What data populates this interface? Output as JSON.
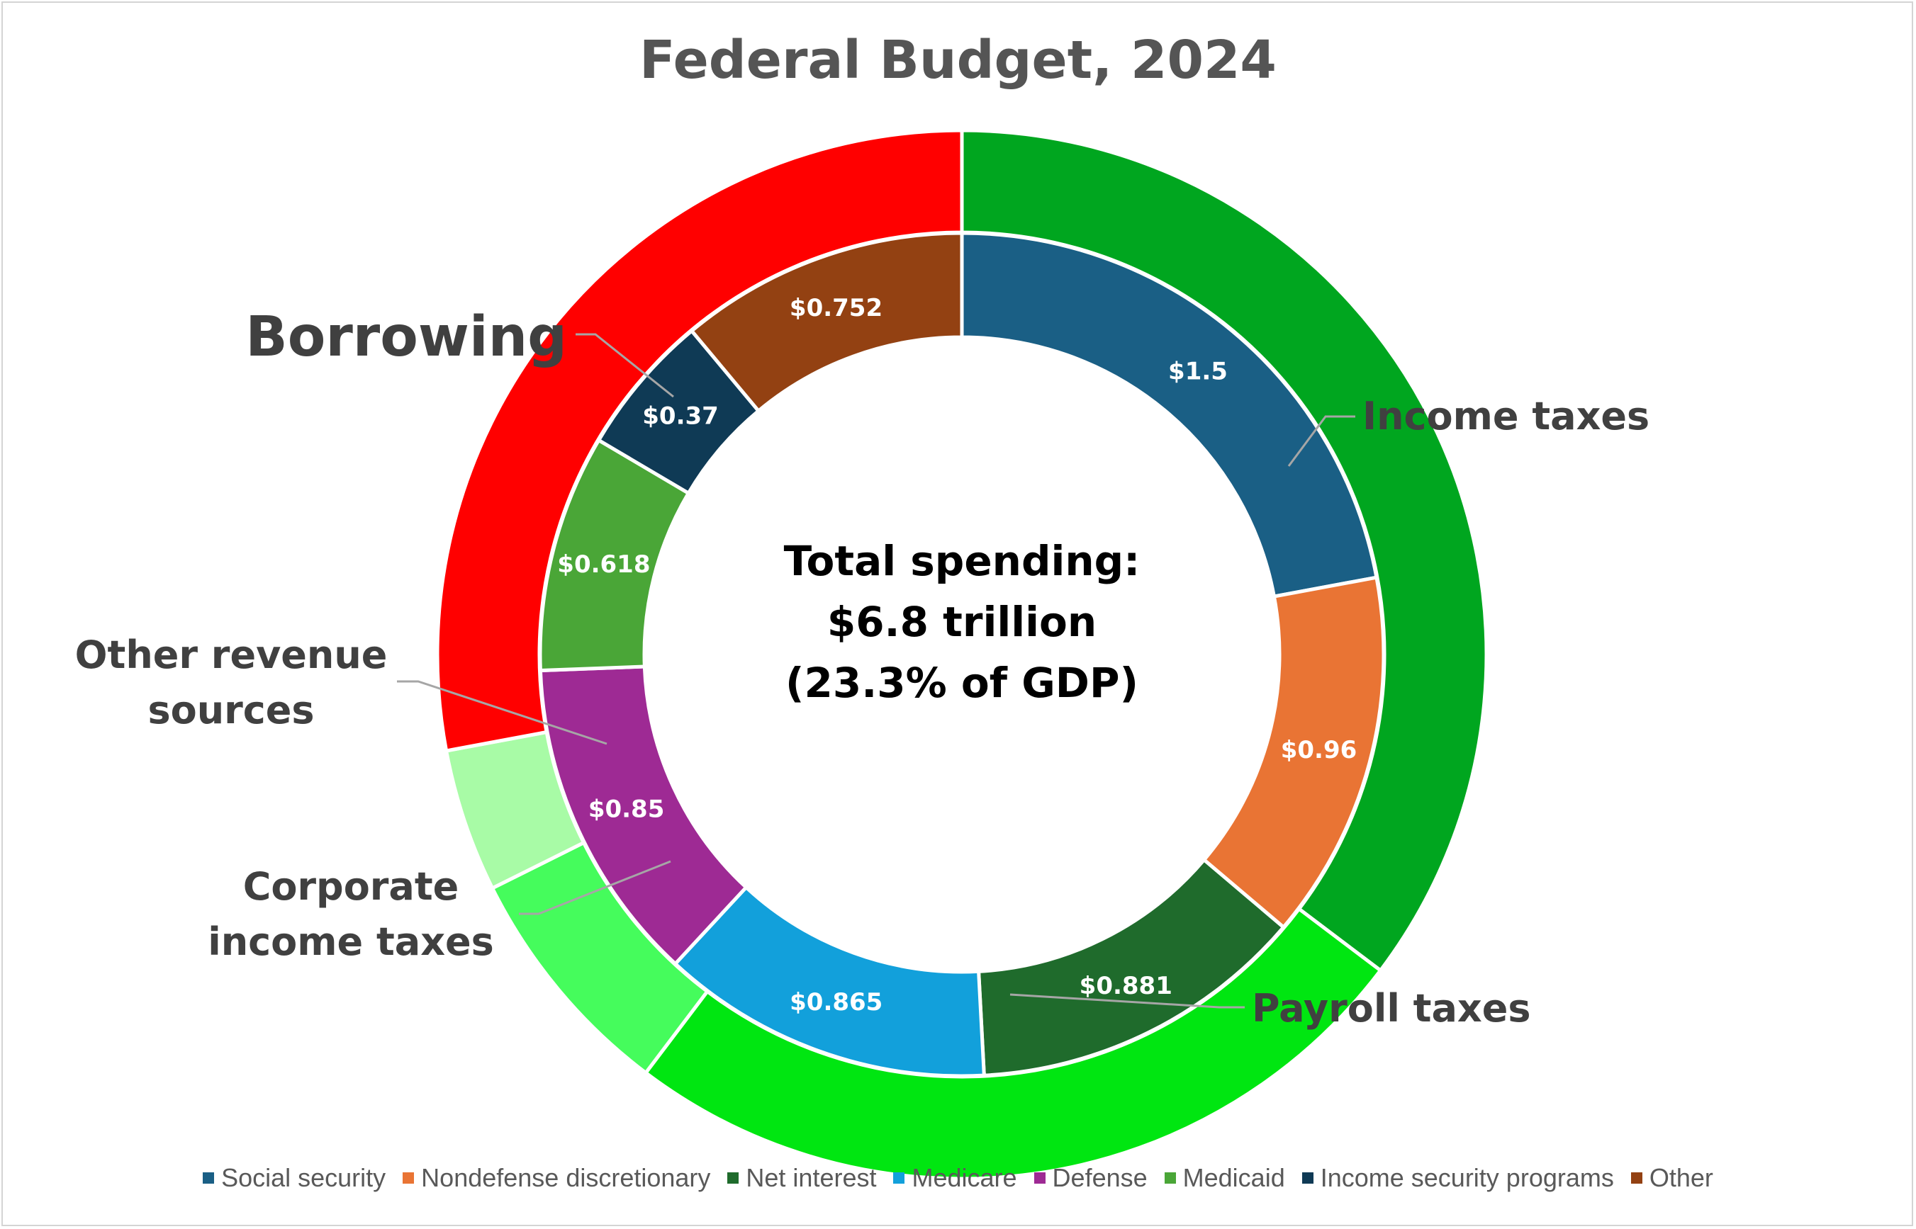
{
  "title": "Federal Budget, 2024",
  "center_label": {
    "line1": "Total spending:",
    "line2": "$6.8 trillion",
    "line3": "(23.3% of GDP)"
  },
  "chart_data": {
    "type": "donut",
    "title": "Federal Budget, 2024",
    "inner_ring": {
      "name": "Spending",
      "categories": [
        "Social security",
        "Nondefense discretionary",
        "Net interest",
        "Medicare",
        "Defense",
        "Medicaid",
        "Income security programs",
        "Other"
      ],
      "values": [
        1.5,
        0.96,
        0.881,
        0.865,
        0.85,
        0.618,
        0.37,
        0.752
      ],
      "labels": [
        "$1.5",
        "$0.96",
        "$0.881",
        "$0.865",
        "$0.85",
        "$0.618",
        "$0.37",
        "$0.752"
      ],
      "colors": [
        "#1a5f85",
        "#e97434",
        "#1f6b2c",
        "#12a0db",
        "#9e2a94",
        "#4aa637",
        "#0f3a55",
        "#934112"
      ]
    },
    "outer_ring": {
      "name": "Revenue",
      "categories": [
        "Income taxes",
        "Payroll taxes",
        "Corporate income taxes",
        "Other revenue sources",
        "Borrowing"
      ],
      "values": [
        2.4,
        1.7,
        0.5,
        0.3,
        1.9
      ],
      "colors": [
        "#00a61f",
        "#00e611",
        "#45fc5c",
        "#a8fba6",
        "#ff0000"
      ]
    },
    "legend_position": "bottom"
  },
  "outer_labels": {
    "income_taxes": "Income taxes",
    "payroll_taxes": "Payroll taxes",
    "corporate_line1": "Corporate",
    "corporate_line2": "income taxes",
    "other_rev_line1": "Other revenue",
    "other_rev_line2": "sources",
    "borrowing": "Borrowing"
  },
  "legend": [
    {
      "label": "Social security",
      "color": "#1a5f85"
    },
    {
      "label": "Nondefense discretionary",
      "color": "#e97434"
    },
    {
      "label": "Net interest",
      "color": "#1f6b2c"
    },
    {
      "label": "Medicare",
      "color": "#12a0db"
    },
    {
      "label": "Defense",
      "color": "#9e2a94"
    },
    {
      "label": "Medicaid",
      "color": "#4aa637"
    },
    {
      "label": "Income security programs",
      "color": "#0f3a55"
    },
    {
      "label": "Other",
      "color": "#934112"
    }
  ]
}
